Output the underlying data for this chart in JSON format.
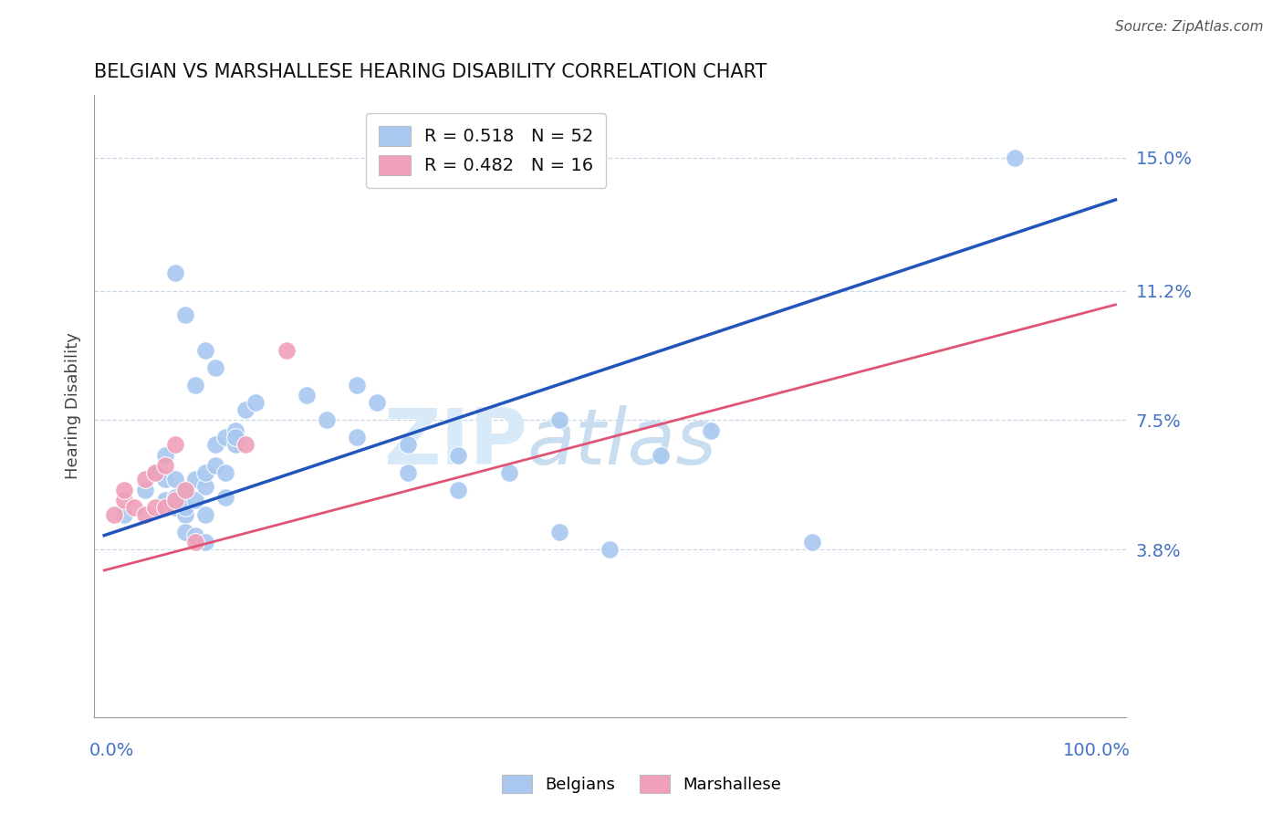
{
  "title": "BELGIAN VS MARSHALLESE HEARING DISABILITY CORRELATION CHART",
  "source": "Source: ZipAtlas.com",
  "ylabel": "Hearing Disability",
  "ytick_labels": [
    "3.8%",
    "7.5%",
    "11.2%",
    "15.0%"
  ],
  "ytick_values": [
    0.038,
    0.075,
    0.112,
    0.15
  ],
  "xlim": [
    -0.01,
    1.01
  ],
  "ylim": [
    -0.01,
    0.168
  ],
  "legend_line1": "R = 0.518   N = 52",
  "legend_line2": "R = 0.482   N = 16",
  "belgian_color": "#a8c8f0",
  "marshallese_color": "#f0a0b8",
  "belgian_line_color": "#2255bb",
  "marshallese_line_color": "#e05575",
  "watermark_text": "ZIPatlas",
  "belgian_line_y0": 0.042,
  "belgian_line_y1": 0.138,
  "marshallese_line_y0": 0.032,
  "marshallese_line_y1": 0.108,
  "bx": [
    0.02,
    0.04,
    0.05,
    0.06,
    0.06,
    0.07,
    0.07,
    0.08,
    0.08,
    0.08,
    0.09,
    0.09,
    0.1,
    0.1,
    0.1,
    0.11,
    0.11,
    0.12,
    0.12,
    0.13,
    0.13,
    0.14,
    0.15,
    0.07,
    0.08,
    0.09,
    0.1,
    0.11,
    0.06,
    0.07,
    0.08,
    0.09,
    0.1,
    0.12,
    0.13,
    0.2,
    0.22,
    0.25,
    0.27,
    0.3,
    0.35,
    0.4,
    0.45,
    0.5,
    0.55,
    0.6,
    0.9,
    0.25,
    0.3,
    0.35,
    0.45,
    0.7
  ],
  "by": [
    0.048,
    0.055,
    0.06,
    0.052,
    0.058,
    0.05,
    0.053,
    0.048,
    0.05,
    0.055,
    0.052,
    0.058,
    0.056,
    0.06,
    0.048,
    0.062,
    0.068,
    0.07,
    0.053,
    0.068,
    0.072,
    0.078,
    0.08,
    0.117,
    0.105,
    0.085,
    0.095,
    0.09,
    0.065,
    0.058,
    0.043,
    0.042,
    0.04,
    0.06,
    0.07,
    0.082,
    0.075,
    0.07,
    0.08,
    0.068,
    0.065,
    0.06,
    0.043,
    0.038,
    0.065,
    0.072,
    0.15,
    0.085,
    0.06,
    0.055,
    0.075,
    0.04
  ],
  "mx": [
    0.01,
    0.02,
    0.02,
    0.03,
    0.04,
    0.04,
    0.05,
    0.05,
    0.06,
    0.06,
    0.07,
    0.07,
    0.08,
    0.09,
    0.14,
    0.18
  ],
  "my": [
    0.048,
    0.052,
    0.055,
    0.05,
    0.048,
    0.058,
    0.05,
    0.06,
    0.05,
    0.062,
    0.052,
    0.068,
    0.055,
    0.04,
    0.068,
    0.095
  ]
}
